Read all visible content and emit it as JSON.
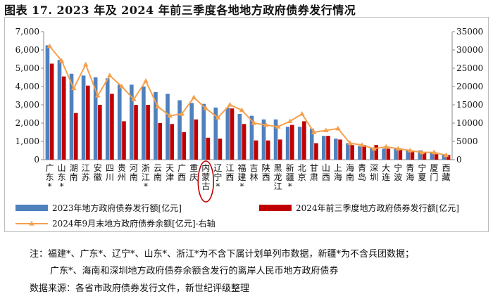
{
  "title": "图表 17. 2023 年及 2024 年前三季度各地地方政府债券发行情况",
  "chart_data": {
    "type": "bar",
    "categories": [
      "广东*",
      "山东*",
      "湖南",
      "江苏",
      "安徽",
      "四川",
      "贵州",
      "河南",
      "浙江*",
      "云南",
      "天津",
      "广西",
      "重庆",
      "内蒙古",
      "辽宁*",
      "江西",
      "福建*",
      "吉林",
      "陕西",
      "黑龙江",
      "新疆*",
      "北京",
      "甘肃",
      "山西",
      "上海",
      "海南",
      "青岛",
      "深圳",
      "大连",
      "宁波",
      "青海",
      "宁夏",
      "厦门",
      "西藏"
    ],
    "series": [
      {
        "name": "2023年地方政府债券发行额[亿元]",
        "axis": "left",
        "color": "#4f81bd",
        "values": [
          6250,
          5450,
          4700,
          4600,
          4500,
          4450,
          4100,
          4100,
          4000,
          3700,
          3600,
          3250,
          3100,
          3050,
          2850,
          2850,
          2500,
          2400,
          2200,
          2200,
          1800,
          1800,
          1700,
          1300,
          1150,
          900,
          750,
          650,
          600,
          600,
          500,
          500,
          400,
          300
        ]
      },
      {
        "name": "2024年前三季度地方政府债券发行额[亿元]",
        "axis": "left",
        "color": "#c00000",
        "values": [
          5250,
          4550,
          2550,
          4050,
          3000,
          3600,
          2100,
          3000,
          3000,
          2000,
          1950,
          1500,
          2200,
          1200,
          1150,
          2800,
          1950,
          1050,
          1050,
          1100,
          1900,
          2100,
          900,
          1300,
          1100,
          800,
          800,
          800,
          600,
          600,
          450,
          400,
          300,
          250
        ]
      },
      {
        "name": "2024年9月末地方政府债券余额[亿元]-右轴",
        "axis": "right",
        "color": "#f5a14e",
        "values": [
          31000,
          27000,
          19500,
          26000,
          17500,
          23000,
          20000,
          16500,
          21500,
          14500,
          12000,
          12500,
          17000,
          14000,
          11500,
          15000,
          13500,
          10000,
          9500,
          9000,
          10500,
          12500,
          7500,
          8000,
          8500,
          4500,
          4000,
          3000,
          3500,
          3000,
          2500,
          2000,
          2000,
          1200
        ]
      }
    ],
    "left_axis": {
      "min": 0,
      "max": 7000,
      "ticks": [
        "0",
        "1,000",
        "2,000",
        "3,000",
        "4,000",
        "5,000",
        "6,000",
        "7,000"
      ]
    },
    "right_axis": {
      "min": 0,
      "max": 35000,
      "ticks": [
        "0",
        "5000",
        "10000",
        "15000",
        "20000",
        "25000",
        "30000",
        "35000"
      ]
    },
    "legend_placement": "bottom",
    "highlight_category": "内蒙古"
  },
  "notes": {
    "line1": "注：福建*、广东*、辽宁*、山东*、浙江*为不含下属计划单列市数据，新疆*为不含兵团数据；",
    "line2": "广东*、海南和深圳地方政府债券余额含发行的离岸人民币地方政府债券",
    "source": "数据来源：各省市政府债券发行文件，新世纪评级整理"
  }
}
